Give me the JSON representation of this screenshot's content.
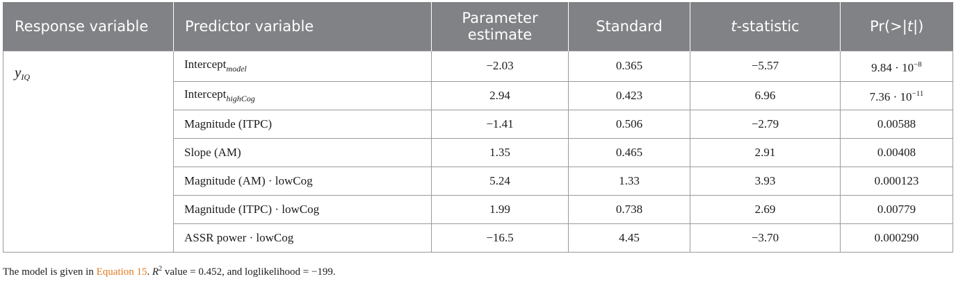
{
  "table": {
    "headers": {
      "response": "Response variable",
      "predictor": "Predictor variable",
      "estimate_line1": "Parameter",
      "estimate_line2": "estimate",
      "standard": "Standard",
      "t_italic": "t",
      "t_rest": "-statistic",
      "pr_open": "Pr(>|",
      "pr_t": "t",
      "pr_close": "|)"
    },
    "response": {
      "symbol": "y",
      "subscript": "IQ"
    },
    "rows": [
      {
        "predictor": "Intercept",
        "predictor_sub": "model",
        "estimate": "−2.03",
        "standard": "0.365",
        "t": "−5.57",
        "pr_base": "9.84 · 10",
        "pr_exp": "−8"
      },
      {
        "predictor": "Intercept",
        "predictor_sub": "highCog",
        "estimate": "2.94",
        "standard": "0.423",
        "t": "6.96",
        "pr_base": "7.36 · 10",
        "pr_exp": "−11"
      },
      {
        "predictor": "Magnitude (ITPC)",
        "estimate": "−1.41",
        "standard": "0.506",
        "t": "−2.79",
        "pr": "0.00588"
      },
      {
        "predictor": "Slope (AM)",
        "estimate": "1.35",
        "standard": "0.465",
        "t": "2.91",
        "pr": "0.00408"
      },
      {
        "predictor": "Magnitude (AM) · lowCog",
        "estimate": "5.24",
        "standard": "1.33",
        "t": "3.93",
        "pr": "0.000123"
      },
      {
        "predictor": "Magnitude (ITPC) · lowCog",
        "estimate": "1.99",
        "standard": "0.738",
        "t": "2.69",
        "pr": "0.00779"
      },
      {
        "predictor": "ASSR power · lowCog",
        "estimate": "−16.5",
        "standard": "4.45",
        "t": "−3.70",
        "pr": "0.000290"
      }
    ]
  },
  "note": {
    "prefix": "The model is given in ",
    "link": "Equation 15",
    "after_link": ". ",
    "r": "R",
    "r_sup": "2",
    "suffix": " value = 0.452, and loglikelihood = −199."
  },
  "colors": {
    "header_bg": "#808285",
    "link": "#e07a22"
  }
}
